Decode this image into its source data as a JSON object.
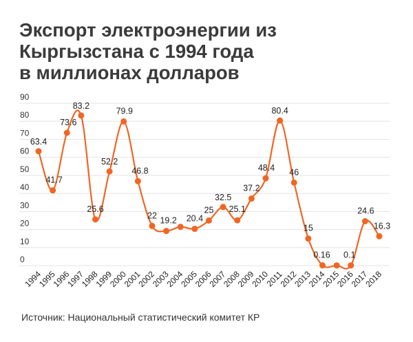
{
  "title": {
    "line1": "Экспорт электроэнергии из",
    "line2": "Кыргызстана с 1994 года",
    "line3": "в миллионах долларов"
  },
  "source": "Источник:  Национальный статистический комитет КР",
  "colors": {
    "line": "#f26522",
    "grid": "#e3e3e3",
    "text": "#222222"
  },
  "chart_data": {
    "type": "line",
    "title": "Экспорт электроэнергии из Кыргызстана с 1994 года в миллионах долларов",
    "xlabel": "",
    "ylabel": "",
    "ylim": [
      0,
      90
    ],
    "yticks": [
      0,
      10,
      20,
      30,
      40,
      50,
      60,
      70,
      80,
      90
    ],
    "grid": true,
    "categories": [
      "1994",
      "1995",
      "1996",
      "1997",
      "1998",
      "1999",
      "2000",
      "2001",
      "2002",
      "2003",
      "2004",
      "2005",
      "2006",
      "2007",
      "2008",
      "2009",
      "2010",
      "2011",
      "2012",
      "2013",
      "2014",
      "2015",
      "2016",
      "2017",
      "2018"
    ],
    "values": [
      63.4,
      41.7,
      73.6,
      83.2,
      25.6,
      52.2,
      79.9,
      46.8,
      22,
      19.2,
      21.5,
      20.4,
      25,
      32.5,
      25.1,
      37.2,
      48.4,
      80.4,
      46,
      15,
      0.16,
      0.1,
      0.1,
      24.6,
      16.3
    ],
    "labels": [
      "63.4",
      "41.7",
      "73.6",
      "83.2",
      "25.6",
      "52.2",
      "79.9",
      "46.8",
      "22",
      "19.2",
      "",
      "20.4",
      "25",
      "32.5",
      "25.1",
      "37.2",
      "48.4",
      "80.4",
      "46",
      "15",
      "0.16",
      "",
      "0.1",
      "24.6",
      "16.3"
    ]
  }
}
